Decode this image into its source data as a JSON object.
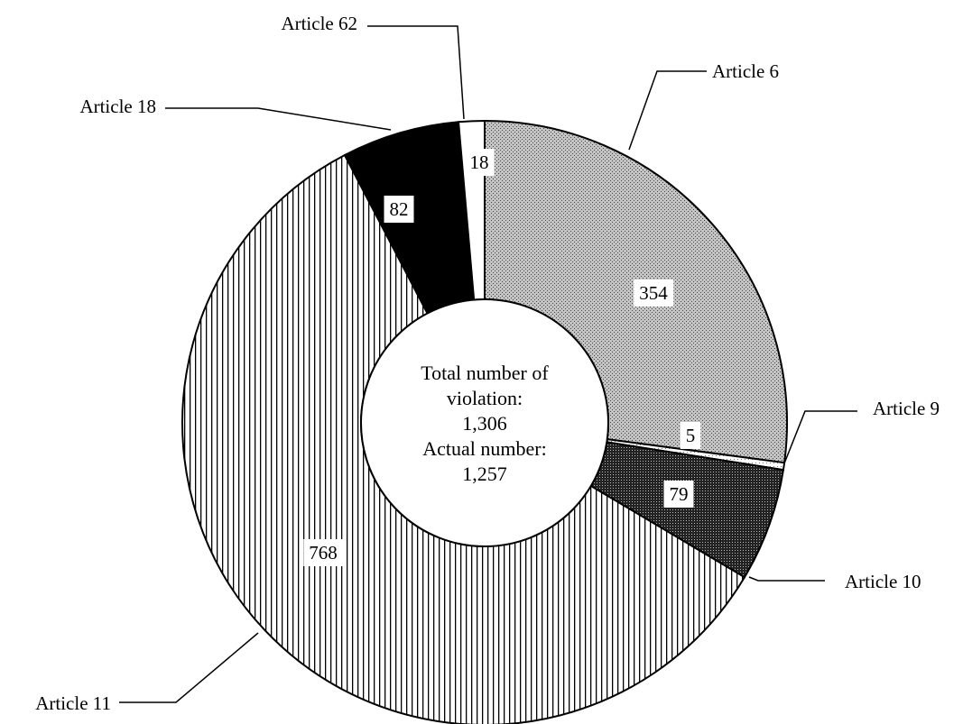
{
  "chart_data": {
    "type": "pie",
    "variant": "donut",
    "categories": [
      "Article 6",
      "Article 9",
      "Article 10",
      "Article 11",
      "Article 18",
      "Article 62"
    ],
    "values": [
      354,
      5,
      79,
      768,
      82,
      18
    ],
    "fills": [
      "crosshatch-grey",
      "dots-light",
      "crosshatch-dark",
      "vertical-stripes",
      "solid-black",
      "white"
    ],
    "center_text": [
      "Total number of",
      "violation:",
      "1,306",
      "Actual number:",
      "1,257"
    ],
    "value_labels": [
      "354",
      "5",
      "79",
      "768",
      "82",
      "18"
    ],
    "legend": "callout labels",
    "colors": {
      "outline": "#000000",
      "background": "#ffffff"
    }
  }
}
